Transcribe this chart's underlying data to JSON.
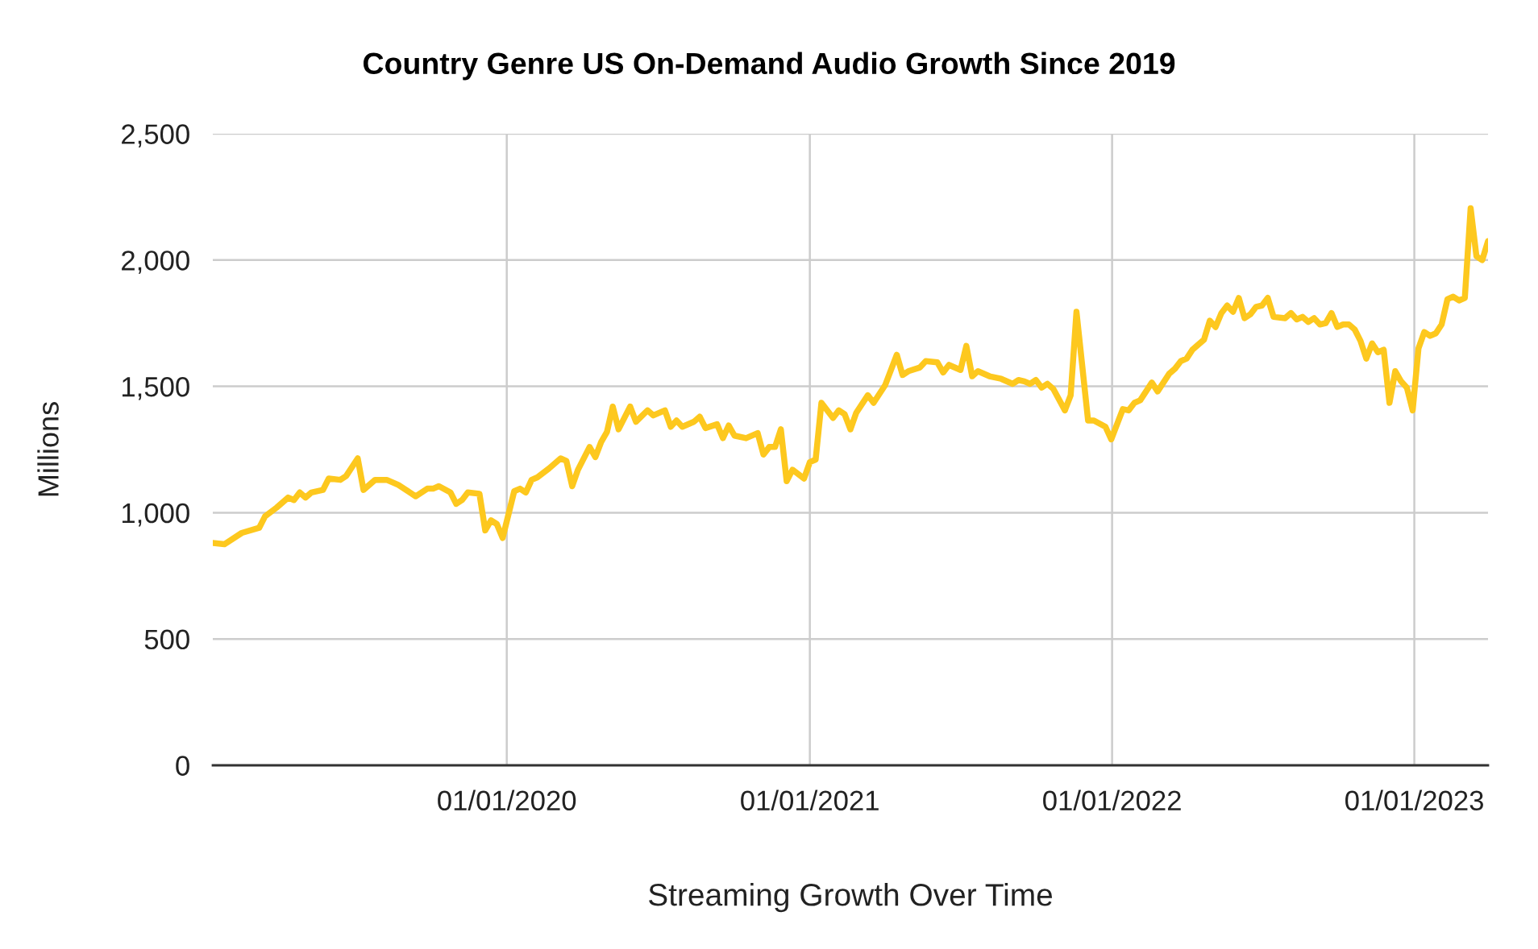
{
  "chart_data": {
    "type": "line",
    "title": "Country Genre US On-Demand Audio Growth Since 2019",
    "xlabel": "Streaming Growth Over Time",
    "ylabel": "Millions",
    "xlim": [
      "2019-01-11",
      "2023-03-31"
    ],
    "xticks": [
      {
        "value": "2020-01-01",
        "label": "01/01/2020"
      },
      {
        "value": "2021-01-01",
        "label": "01/01/2021"
      },
      {
        "value": "2022-01-01",
        "label": "01/01/2022"
      },
      {
        "value": "2023-01-01",
        "label": "01/01/2023"
      }
    ],
    "ylim": [
      0,
      2500
    ],
    "yticks": [
      0,
      500,
      {
        "value": 1000,
        "label": "1,000"
      },
      {
        "value": 1500,
        "label": "1,500"
      },
      {
        "value": 2000,
        "label": "2,000"
      },
      {
        "value": 2500,
        "label": "2,500"
      }
    ],
    "grid": true,
    "marker": "none",
    "line_style": "solid",
    "series": [
      {
        "color": "#fdc81e",
        "x": [
          "2019-01-11",
          "2019-01-25",
          "2019-02-15",
          "2019-03-08",
          "2019-03-15",
          "2019-03-29",
          "2019-04-12",
          "2019-04-19",
          "2019-04-26",
          "2019-05-03",
          "2019-05-10",
          "2019-05-24",
          "2019-05-31",
          "2019-06-14",
          "2019-06-21",
          "2019-07-05",
          "2019-07-12",
          "2019-07-26",
          "2019-08-09",
          "2019-08-23",
          "2019-09-13",
          "2019-09-27",
          "2019-10-04",
          "2019-10-11",
          "2019-10-25",
          "2019-11-01",
          "2019-11-08",
          "2019-11-15",
          "2019-11-29",
          "2019-12-06",
          "2019-12-13",
          "2019-12-20",
          "2019-12-27",
          "2020-01-10",
          "2020-01-17",
          "2020-01-24",
          "2020-01-31",
          "2020-02-07",
          "2020-02-21",
          "2020-03-06",
          "2020-03-13",
          "2020-03-20",
          "2020-03-27",
          "2020-04-10",
          "2020-04-17",
          "2020-04-24",
          "2020-05-01",
          "2020-05-08",
          "2020-05-15",
          "2020-05-29",
          "2020-06-05",
          "2020-06-19",
          "2020-06-26",
          "2020-07-10",
          "2020-07-17",
          "2020-07-24",
          "2020-07-31",
          "2020-08-14",
          "2020-08-21",
          "2020-08-28",
          "2020-09-11",
          "2020-09-18",
          "2020-09-25",
          "2020-10-02",
          "2020-10-16",
          "2020-10-30",
          "2020-11-06",
          "2020-11-13",
          "2020-11-20",
          "2020-11-27",
          "2020-12-04",
          "2020-12-11",
          "2020-12-25",
          "2021-01-01",
          "2021-01-08",
          "2021-01-15",
          "2021-01-29",
          "2021-02-05",
          "2021-02-12",
          "2021-02-19",
          "2021-02-26",
          "2021-03-12",
          "2021-03-19",
          "2021-04-02",
          "2021-04-16",
          "2021-04-23",
          "2021-04-30",
          "2021-05-14",
          "2021-05-21",
          "2021-06-04",
          "2021-06-11",
          "2021-06-18",
          "2021-07-02",
          "2021-07-09",
          "2021-07-16",
          "2021-07-23",
          "2021-08-06",
          "2021-08-20",
          "2021-09-03",
          "2021-09-10",
          "2021-09-17",
          "2021-09-24",
          "2021-10-01",
          "2021-10-08",
          "2021-10-15",
          "2021-10-22",
          "2021-11-05",
          "2021-11-12",
          "2021-11-19",
          "2021-11-26",
          "2021-12-03",
          "2021-12-10",
          "2021-12-24",
          "2021-12-31",
          "2022-01-14",
          "2022-01-21",
          "2022-01-28",
          "2022-02-04",
          "2022-02-18",
          "2022-02-25",
          "2022-03-11",
          "2022-03-18",
          "2022-03-25",
          "2022-04-01",
          "2022-04-08",
          "2022-04-22",
          "2022-04-29",
          "2022-05-06",
          "2022-05-13",
          "2022-05-20",
          "2022-05-27",
          "2022-06-03",
          "2022-06-10",
          "2022-06-17",
          "2022-06-24",
          "2022-07-01",
          "2022-07-08",
          "2022-07-15",
          "2022-07-29",
          "2022-08-05",
          "2022-08-12",
          "2022-08-19",
          "2022-08-26",
          "2022-09-02",
          "2022-09-09",
          "2022-09-16",
          "2022-09-23",
          "2022-09-30",
          "2022-10-07",
          "2022-10-14",
          "2022-10-21",
          "2022-10-28",
          "2022-11-04",
          "2022-11-11",
          "2022-11-18",
          "2022-11-25",
          "2022-12-02",
          "2022-12-09",
          "2022-12-16",
          "2022-12-23",
          "2022-12-30",
          "2023-01-06",
          "2023-01-13",
          "2023-01-20",
          "2023-01-27",
          "2023-02-03",
          "2023-02-10",
          "2023-02-17",
          "2023-02-24",
          "2023-03-03",
          "2023-03-10",
          "2023-03-17",
          "2023-03-24",
          "2023-03-31"
        ],
        "values": [
          880,
          875,
          920,
          940,
          985,
          1020,
          1060,
          1050,
          1080,
          1060,
          1080,
          1090,
          1135,
          1130,
          1145,
          1215,
          1090,
          1130,
          1130,
          1110,
          1065,
          1095,
          1095,
          1105,
          1080,
          1035,
          1050,
          1080,
          1075,
          930,
          970,
          955,
          900,
          1085,
          1095,
          1080,
          1130,
          1140,
          1175,
          1215,
          1205,
          1105,
          1170,
          1260,
          1220,
          1280,
          1320,
          1420,
          1330,
          1420,
          1360,
          1405,
          1385,
          1405,
          1340,
          1365,
          1340,
          1360,
          1380,
          1335,
          1350,
          1295,
          1345,
          1305,
          1295,
          1315,
          1230,
          1260,
          1260,
          1330,
          1125,
          1170,
          1135,
          1200,
          1210,
          1435,
          1375,
          1405,
          1390,
          1330,
          1395,
          1465,
          1435,
          1505,
          1625,
          1545,
          1560,
          1575,
          1600,
          1595,
          1555,
          1585,
          1565,
          1660,
          1540,
          1560,
          1540,
          1530,
          1510,
          1525,
          1520,
          1510,
          1525,
          1495,
          1510,
          1490,
          1405,
          1465,
          1795,
          1580,
          1365,
          1365,
          1340,
          1290,
          1410,
          1405,
          1435,
          1445,
          1515,
          1480,
          1550,
          1570,
          1600,
          1610,
          1645,
          1685,
          1760,
          1735,
          1790,
          1820,
          1795,
          1850,
          1770,
          1785,
          1815,
          1820,
          1850,
          1775,
          1770,
          1790,
          1765,
          1775,
          1755,
          1770,
          1745,
          1750,
          1790,
          1735,
          1745,
          1745,
          1725,
          1680,
          1610,
          1670,
          1635,
          1645,
          1435,
          1560,
          1520,
          1495,
          1405,
          1650,
          1715,
          1700,
          1710,
          1745,
          1845,
          1855,
          1840,
          1850,
          2205,
          2015,
          2000,
          2075
        ]
      }
    ]
  }
}
